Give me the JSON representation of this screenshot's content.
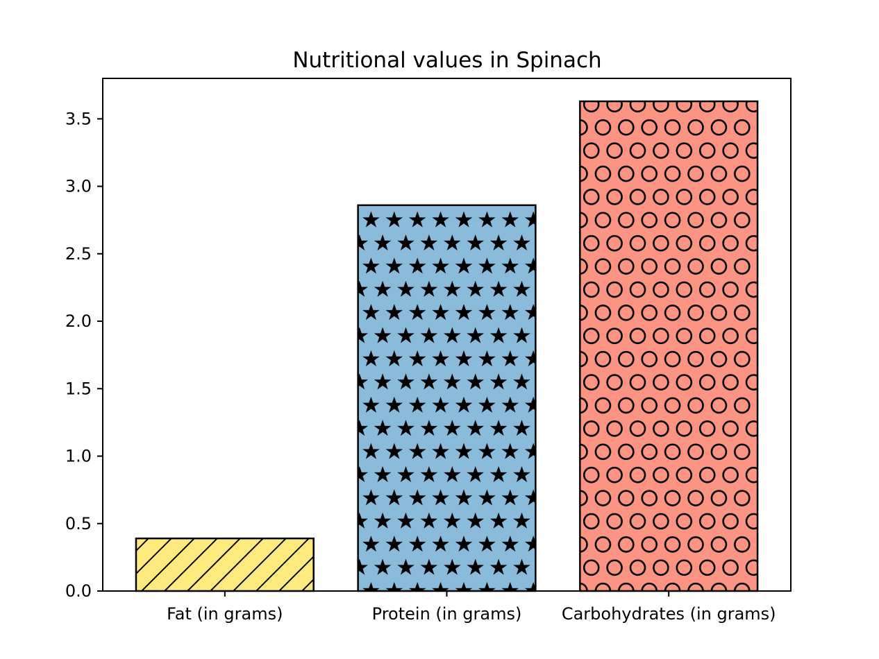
{
  "chart_data": {
    "type": "bar",
    "title": "Nutritional values in Spinach",
    "xlabel": "",
    "ylabel": "",
    "categories": [
      "Fat (in grams)",
      "Protein (in grams)",
      "Carbohydrates (in grams)"
    ],
    "values": [
      0.39,
      2.86,
      3.63
    ],
    "colors": [
      "#fdeb80",
      "#8bbbdb",
      "#fc9483"
    ],
    "hatches": [
      "diagonal-lines",
      "stars",
      "circles"
    ],
    "ylim": [
      0,
      3.8
    ],
    "yticks": [
      "0.0",
      "0.5",
      "1.0",
      "1.5",
      "2.0",
      "2.5",
      "3.0",
      "3.5"
    ],
    "grid": false,
    "legend": "none"
  }
}
